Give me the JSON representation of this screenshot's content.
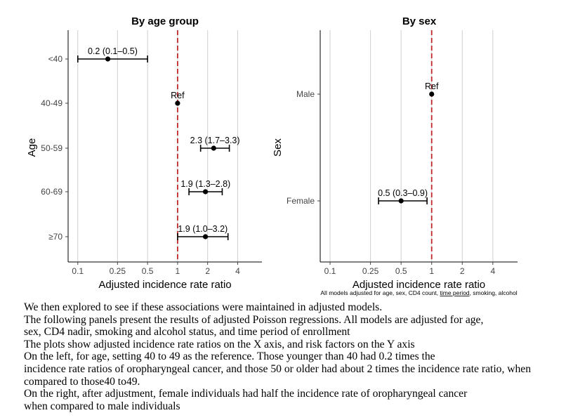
{
  "chart_data": [
    {
      "type": "forest",
      "title": "By age group",
      "xlabel": "Adjusted incidence rate ratio",
      "ylabel": "Age",
      "x_scale": "log",
      "xlim": [
        0.08,
        7
      ],
      "x_ticks": [
        0.1,
        0.25,
        0.5,
        1,
        2,
        4
      ],
      "x_tick_labels": [
        "0.1",
        "0.25",
        "0.5",
        "1",
        "2",
        "4"
      ],
      "reference_line": 1,
      "reference_color": "#c0282a",
      "categories": [
        "<40",
        "40-49",
        "50-59",
        "60-69",
        "≥70"
      ],
      "points": [
        {
          "category": "<40",
          "estimate": 0.2,
          "lower": 0.1,
          "upper": 0.5,
          "label": "0.2 (0.1–0.5)"
        },
        {
          "category": "40-49",
          "estimate": 1.0,
          "lower": null,
          "upper": null,
          "label": "Ref"
        },
        {
          "category": "50-59",
          "estimate": 2.3,
          "lower": 1.7,
          "upper": 3.3,
          "label": "2.3 (1.7–3.3)"
        },
        {
          "category": "60-69",
          "estimate": 1.9,
          "lower": 1.3,
          "upper": 2.8,
          "label": "1.9 (1.3–2.8)"
        },
        {
          "category": "≥70",
          "estimate": 1.9,
          "lower": 1.0,
          "upper": 3.2,
          "label": "1.9 (1.0–3.2)"
        }
      ]
    },
    {
      "type": "forest",
      "title": "By sex",
      "xlabel": "Adjusted incidence rate ratio",
      "ylabel": "Sex",
      "x_scale": "log",
      "xlim": [
        0.08,
        7
      ],
      "x_ticks": [
        0.1,
        0.25,
        0.5,
        1,
        2,
        4
      ],
      "x_tick_labels": [
        "0.1",
        "0.25",
        "0.5",
        "1",
        "2",
        "4"
      ],
      "reference_line": 1,
      "reference_color": "#c0282a",
      "categories": [
        "Male",
        "Female"
      ],
      "points": [
        {
          "category": "Male",
          "estimate": 1.0,
          "lower": null,
          "upper": null,
          "label": "Ref"
        },
        {
          "category": "Female",
          "estimate": 0.5,
          "lower": 0.3,
          "upper": 0.9,
          "label": "0.5 (0.3–0.9)"
        }
      ],
      "footnote_parts": [
        "All models adjusted for age, sex, CD4 count, ",
        "time period",
        ", smoking, alcohol"
      ]
    }
  ],
  "notes": {
    "lines": [
      "We then explored to see if these associations were maintained in adjusted models.",
      "The following panels present the results of adjusted Poisson regressions. All models are adjusted for age,",
      "sex, CD4 nadir, smoking and alcohol status, and time period of enrollment",
      "The plots show adjusted incidence rate ratios on the X axis, and risk factors on the Y axis",
      "On the left, for age, setting 40 to 49 as the reference. Those younger than 40 had 0.2 times the",
      "incidence rate ratios of oropharyngeal cancer, and those 50 or older had about 2 times the incidence rate ratio, when",
      "compared to those40 to49.",
      "On the right, after adjustment, female individuals had half the incidence rate of oropharyngeal cancer",
      "when compared to male individuals"
    ]
  }
}
